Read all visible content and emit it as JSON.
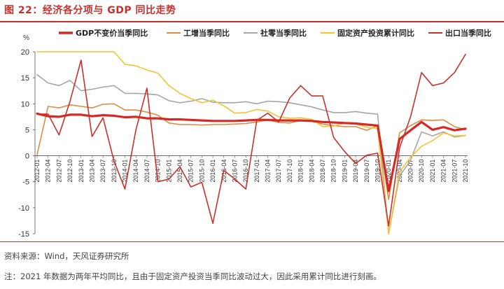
{
  "figure": {
    "title": "图 22：经济各分项与 GDP 同比走势",
    "source": "资料来源：Wind，天风证券研究所",
    "note": "注：2021 年数据为两年平均同比，且由于固定资产投资当季同比波动过大，因此采用累计同比进行刻画。"
  },
  "chart_data": {
    "type": "line",
    "y_unit": "%",
    "ylim": [
      -15,
      20
    ],
    "yticks": [
      -15,
      -10,
      -5,
      0,
      5,
      10,
      15,
      20
    ],
    "grid": false,
    "legend_position": "top",
    "x": [
      "2012-01",
      "2012-04",
      "2012-07",
      "2012-10",
      "2013-01",
      "2013-04",
      "2013-07",
      "2013-10",
      "2014-01",
      "2014-04",
      "2014-07",
      "2014-10",
      "2015-01",
      "2015-04",
      "2015-07",
      "2015-10",
      "2016-01",
      "2016-04",
      "2016-07",
      "2016-10",
      "2017-01",
      "2017-04",
      "2017-07",
      "2017-10",
      "2018-01",
      "2018-04",
      "2018-07",
      "2018-10",
      "2019-01",
      "2019-04",
      "2019-07",
      "2019-10",
      "2020-01",
      "2020-04",
      "2020-07",
      "2020-10",
      "2021-01",
      "2021-04",
      "2021-07",
      "2021-10"
    ],
    "series": [
      {
        "name": "GDP不变价当季同比",
        "color": "#d42a23",
        "width": 3.2,
        "values": [
          8.1,
          7.6,
          7.5,
          7.9,
          7.9,
          7.6,
          7.8,
          7.7,
          7.4,
          7.5,
          7.2,
          7.2,
          7.0,
          7.0,
          6.9,
          6.8,
          6.7,
          6.7,
          6.7,
          6.8,
          6.9,
          6.9,
          6.8,
          6.8,
          6.8,
          6.7,
          6.5,
          6.4,
          6.3,
          6.2,
          6.0,
          5.8,
          -6.8,
          3.2,
          4.9,
          6.5,
          5.0,
          5.5,
          4.9,
          5.2
        ]
      },
      {
        "name": "工增当季同比",
        "color": "#e08a44",
        "width": 1.6,
        "values": [
          0.2,
          9.5,
          9.2,
          9.8,
          9.5,
          9.2,
          9.9,
          10.0,
          8.8,
          8.8,
          8.4,
          7.8,
          6.3,
          6.0,
          6.0,
          5.9,
          6.0,
          6.0,
          6.1,
          6.2,
          6.5,
          6.9,
          6.4,
          6.3,
          6.8,
          6.6,
          6.1,
          5.8,
          5.6,
          5.6,
          4.9,
          5.8,
          -8.4,
          4.4,
          5.8,
          6.9,
          6.8,
          6.9,
          5.6,
          5.0
        ]
      },
      {
        "name": "社零当季同比",
        "color": "#a6a6a6",
        "width": 1.6,
        "values": [
          15.6,
          14.0,
          13.5,
          14.5,
          12.5,
          12.8,
          13.2,
          13.5,
          12.0,
          12.0,
          11.9,
          11.7,
          10.6,
          10.2,
          10.5,
          11.0,
          10.3,
          10.2,
          10.2,
          10.4,
          10.0,
          10.5,
          10.4,
          10.2,
          9.8,
          9.4,
          8.8,
          8.3,
          8.3,
          8.5,
          8.2,
          8.0,
          -19.0,
          -3.9,
          -0.9,
          4.6,
          3.8,
          4.6,
          3.6,
          3.9
        ]
      },
      {
        "name": "固定资产投资累计同比",
        "color": "#f4c430",
        "width": 1.6,
        "values": [
          21.5,
          20.5,
          20.3,
          20.5,
          21.0,
          20.5,
          20.2,
          20.1,
          17.6,
          17.3,
          16.5,
          15.9,
          13.5,
          12.0,
          11.0,
          10.2,
          10.7,
          9.6,
          8.2,
          8.3,
          8.9,
          8.6,
          7.5,
          7.2,
          7.3,
          7.0,
          5.6,
          5.7,
          6.3,
          6.1,
          5.5,
          5.2,
          -16.1,
          -3.1,
          -0.3,
          1.8,
          2.9,
          4.4,
          3.8,
          3.9
        ]
      },
      {
        "name": "出口当季同比",
        "color": "#c8312b",
        "width": 1.6,
        "values": [
          8.0,
          8.0,
          4.0,
          10.5,
          18.4,
          3.7,
          7.3,
          -1.0,
          -6.4,
          5.0,
          13.0,
          -5.0,
          -4.5,
          -2.1,
          -6.0,
          -5.1,
          -13.0,
          -2.8,
          -4.5,
          -6.4,
          6.8,
          8.2,
          6.5,
          11.1,
          13.5,
          11.5,
          11.5,
          3.5,
          0.8,
          -1.5,
          0.1,
          0.5,
          -13.5,
          1.5,
          7.5,
          16.0,
          13.5,
          14.0,
          16.0,
          19.5
        ]
      }
    ]
  }
}
